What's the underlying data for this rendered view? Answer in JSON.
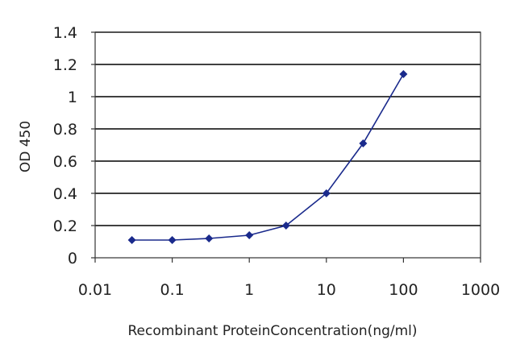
{
  "chart_data": {
    "type": "line",
    "title": "",
    "xlabel": "Recombinant ProteinConcentration(ng/ml)",
    "ylabel": "OD 450",
    "x_scale": "log",
    "xlim": [
      0.01,
      1000
    ],
    "ylim": [
      0,
      1.4
    ],
    "x_ticks": [
      "0.01",
      "0.1",
      "1",
      "10",
      "100",
      "1000"
    ],
    "y_ticks": [
      "0",
      "0.2",
      "0.4",
      "0.6",
      "0.8",
      "1",
      "1.2",
      "1.4"
    ],
    "grid": "horizontal",
    "legend": "none",
    "series": [
      {
        "x": [
          0.03,
          0.1,
          0.3,
          1,
          3,
          10,
          30,
          100
        ],
        "y": [
          0.11,
          0.11,
          0.12,
          0.14,
          0.2,
          0.4,
          0.71,
          1.14
        ]
      }
    ],
    "colors": {
      "series": "#1a2a8c",
      "grid": "#000000",
      "axis": "#333333"
    }
  }
}
